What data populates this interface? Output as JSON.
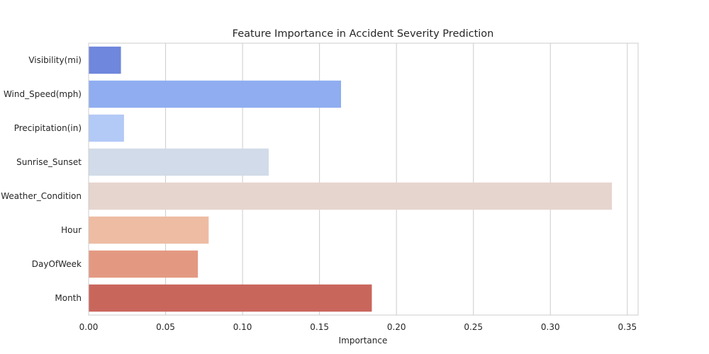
{
  "chart_data": {
    "type": "bar",
    "orientation": "horizontal",
    "title": "Feature Importance in Accident Severity Prediction",
    "xlabel": "Importance",
    "ylabel": "",
    "categories": [
      "Visibility(mi)",
      "Wind_Speed(mph)",
      "Precipitation(in)",
      "Sunrise_Sunset",
      "Weather_Condition",
      "Hour",
      "DayOfWeek",
      "Month"
    ],
    "values": [
      0.021,
      0.164,
      0.023,
      0.117,
      0.34,
      0.078,
      0.071,
      0.184
    ],
    "colors": [
      "#6f87dc",
      "#8fadf0",
      "#b3c9f6",
      "#d1dbe9",
      "#e6d5ce",
      "#eebca3",
      "#e39981",
      "#c9665c"
    ],
    "xlim": [
      0,
      0.357
    ],
    "xticks": [
      0.0,
      0.05,
      0.1,
      0.15,
      0.2,
      0.25,
      0.3,
      0.35
    ],
    "xtick_labels": [
      "0.00",
      "0.05",
      "0.10",
      "0.15",
      "0.20",
      "0.25",
      "0.30",
      "0.35"
    ],
    "grid": "x",
    "legend": "none"
  }
}
